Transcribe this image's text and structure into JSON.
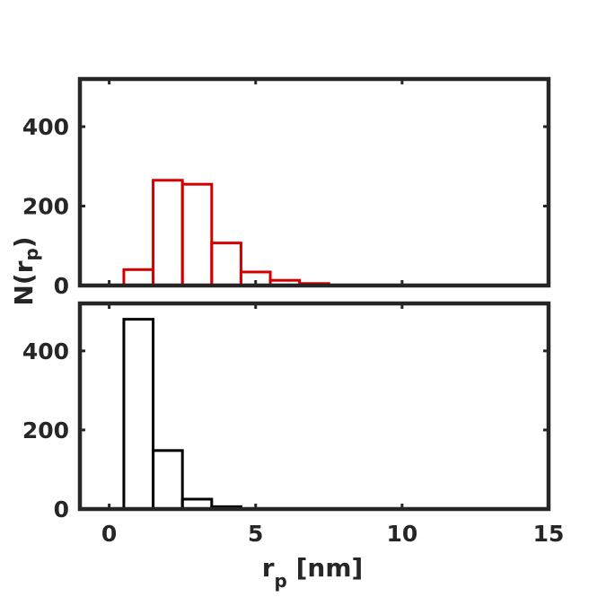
{
  "chart_data": [
    {
      "type": "bar",
      "panel": "top",
      "bin_edges": [
        0.5,
        1.5,
        2.5,
        3.5,
        4.5,
        5.5,
        6.5,
        7.5
      ],
      "values": [
        40,
        265,
        255,
        107,
        34,
        13,
        5
      ],
      "series": [
        {
          "color": "#d40000",
          "values": [
            40,
            265,
            255,
            107,
            34,
            13,
            5
          ]
        }
      ],
      "xlim": [
        -1,
        15
      ],
      "ylim": [
        0,
        520
      ],
      "yticks": [
        "0",
        "200",
        "400"
      ],
      "ytick_values": [
        0,
        200,
        400
      ],
      "ylabel": "N(r",
      "ylabel_sub": "p",
      "ylabel_end": ")",
      "grid": false,
      "legend": "none"
    },
    {
      "type": "bar",
      "panel": "bottom",
      "bin_edges": [
        0.5,
        1.5,
        2.5,
        3.5,
        4.5
      ],
      "values": [
        480,
        148,
        25,
        6
      ],
      "series": [
        {
          "color": "#000000",
          "values": [
            480,
            148,
            25,
            6
          ]
        }
      ],
      "xlim": [
        -1,
        15
      ],
      "ylim": [
        0,
        520
      ],
      "yticks": [
        "0",
        "200",
        "400"
      ],
      "ytick_values": [
        0,
        200,
        400
      ],
      "xticks": [
        "0",
        "5",
        "10",
        "15"
      ],
      "xtick_values": [
        0,
        5,
        10,
        15
      ],
      "xlabel": "r",
      "xlabel_sub": "p",
      "xlabel_end": " [nm]",
      "grid": false,
      "legend": "none"
    }
  ],
  "colors": {
    "axes": "#262626",
    "frame": "#262626"
  }
}
